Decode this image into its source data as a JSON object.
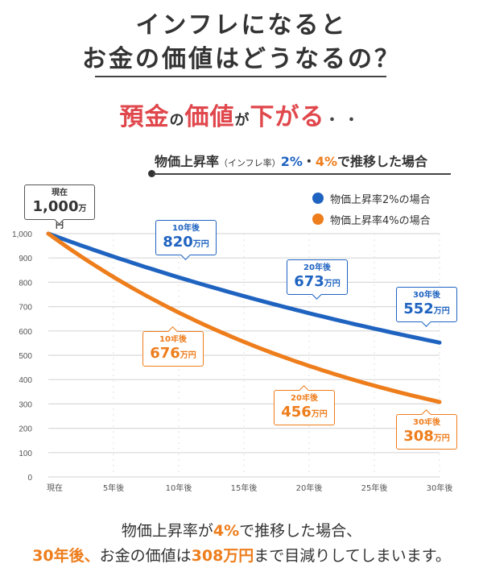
{
  "header": {
    "title_line1": "インフレになると",
    "title_line2": "お金の価値はどうなるの？",
    "subtitle": {
      "part1": "預金",
      "part2": "の",
      "part3": "価値",
      "part4": "が",
      "part5": "下がる",
      "part6": "・・"
    },
    "scenario": {
      "prefix": "物価上昇率",
      "paren": "（インフレ率）",
      "rate_a": "2%",
      "sep": "・",
      "rate_b": "4%",
      "suffix": "で推移した場合"
    }
  },
  "colors": {
    "blue": "#1f63c0",
    "orange": "#ee7d1c",
    "red": "#e0474c",
    "grid": "#d9d9d9",
    "text": "#333333"
  },
  "chart_data": {
    "type": "line",
    "title": "",
    "xlabel": "",
    "ylabel": "",
    "x_tick_labels": [
      "現在",
      "5年後",
      "10年後",
      "15年後",
      "20年後",
      "25年後",
      "30年後"
    ],
    "x_ticks": [
      0,
      5,
      10,
      15,
      20,
      25,
      30
    ],
    "xlim": [
      0,
      30
    ],
    "y_tick_labels": [
      "0",
      "100",
      "200",
      "300",
      "400",
      "500",
      "600",
      "700",
      "800",
      "900",
      "1,000"
    ],
    "y_ticks": [
      0,
      100,
      200,
      300,
      400,
      500,
      600,
      700,
      800,
      900,
      1000
    ],
    "ylim": [
      0,
      1000
    ],
    "grid": true,
    "legend_position": "top-right",
    "series": [
      {
        "name": "物価上昇率2%の場合",
        "rate": 0.02,
        "color": "#1f63c0",
        "x": [
          0,
          5,
          10,
          15,
          20,
          25,
          30
        ],
        "values": [
          1000,
          906,
          820,
          743,
          673,
          610,
          552
        ],
        "callouts": [
          {
            "label": "10年後",
            "value": "820",
            "unit": "万円"
          },
          {
            "label": "20年後",
            "value": "673",
            "unit": "万円"
          },
          {
            "label": "30年後",
            "value": "552",
            "unit": "万円"
          }
        ]
      },
      {
        "name": "物価上昇率4%の場合",
        "rate": 0.04,
        "color": "#ee7d1c",
        "x": [
          0,
          5,
          10,
          15,
          20,
          25,
          30
        ],
        "values": [
          1000,
          822,
          676,
          555,
          456,
          375,
          308
        ],
        "callouts": [
          {
            "label": "10年後",
            "value": "676",
            "unit": "万円"
          },
          {
            "label": "20年後",
            "value": "456",
            "unit": "万円"
          },
          {
            "label": "30年後",
            "value": "308",
            "unit": "万円"
          }
        ]
      }
    ],
    "start_callout": {
      "label": "現在",
      "value": "1,000",
      "unit": "万円"
    }
  },
  "footer": {
    "line1_a": "物価上昇率が",
    "line1_b": "4%",
    "line1_c": "で推移した場合、",
    "line2_a": "30年後、",
    "line2_b": "お金の価値は",
    "line2_c": "308万円",
    "line2_d": "まで目減りしてしまいます。"
  }
}
